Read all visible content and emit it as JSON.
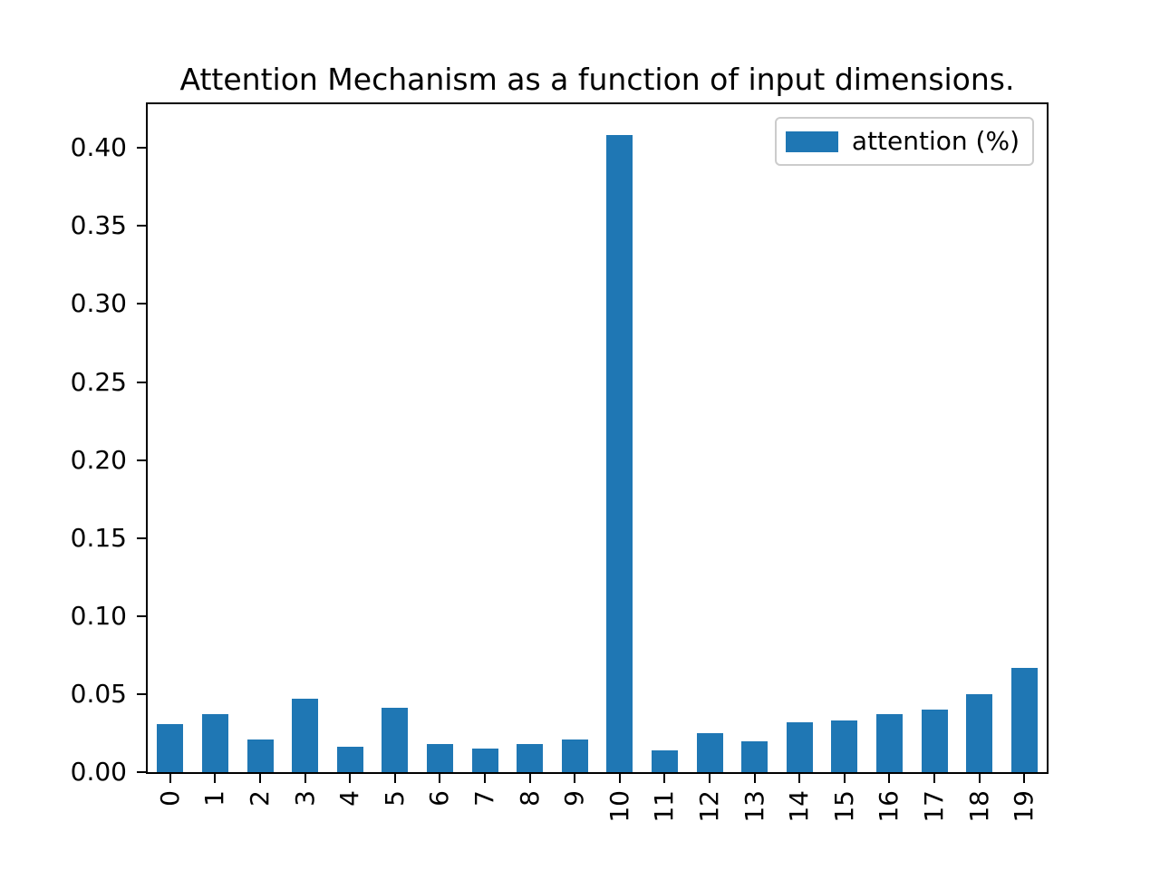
{
  "title": "Attention Mechanism as a function of input dimensions.",
  "legend": {
    "label": "attention (%)",
    "swatch_color": "#1f77b4",
    "position": "upper right"
  },
  "chart_data": {
    "type": "bar",
    "title": "Attention Mechanism as a function of input dimensions.",
    "categories": [
      "0",
      "1",
      "2",
      "3",
      "4",
      "5",
      "6",
      "7",
      "8",
      "9",
      "10",
      "11",
      "12",
      "13",
      "14",
      "15",
      "16",
      "17",
      "18",
      "19"
    ],
    "values": [
      0.031,
      0.037,
      0.021,
      0.047,
      0.016,
      0.041,
      0.018,
      0.015,
      0.018,
      0.021,
      0.408,
      0.014,
      0.025,
      0.02,
      0.032,
      0.033,
      0.037,
      0.04,
      0.05,
      0.067
    ],
    "series_name": "attention (%)",
    "xlabel": "",
    "ylabel": "",
    "ylim": [
      0,
      0.428
    ],
    "yticks": [
      0.0,
      0.05,
      0.1,
      0.15,
      0.2,
      0.25,
      0.3,
      0.35,
      0.4
    ],
    "ytick_format_decimals": 2,
    "x_tick_rotation": 90,
    "grid": false,
    "bar_color": "#1f77b4",
    "legend_entries": [
      "attention (%)"
    ],
    "legend_position": "upper right",
    "background_color": "#ffffff",
    "spine_color": "#000000"
  }
}
